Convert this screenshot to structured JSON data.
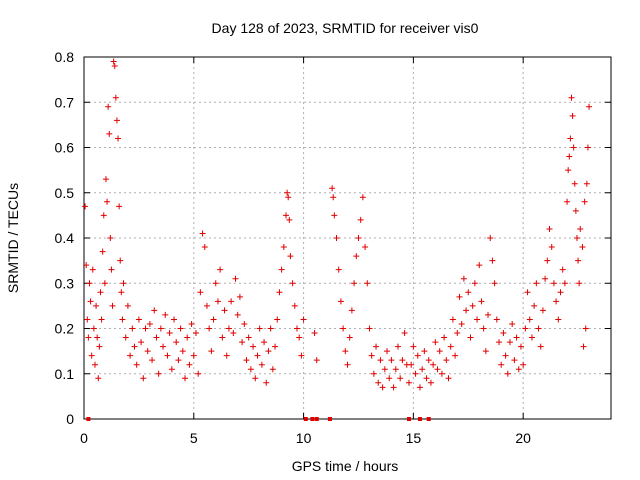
{
  "chart_data": {
    "type": "scatter",
    "title": "Day 128 of 2023, SRMTID for receiver vis0",
    "xlabel": "GPS time / hours",
    "ylabel": "SRMTID / TECUs",
    "xlim": [
      0,
      24
    ],
    "ylim": [
      0,
      0.8
    ],
    "xticks": [
      0,
      5,
      10,
      15,
      20
    ],
    "xtick_labels": [
      "0",
      "5",
      "10",
      "15",
      "20"
    ],
    "yticks": [
      0,
      0.1,
      0.2,
      0.3,
      0.4,
      0.5,
      0.6,
      0.7,
      0.8
    ],
    "ytick_labels": [
      "0",
      "0.1",
      "0.2",
      "0.3",
      "0.4",
      "0.5",
      "0.6",
      "0.7",
      "0.8"
    ],
    "grid": true,
    "marker": "+",
    "color": "#e00000",
    "series": [
      {
        "name": "vis0",
        "points": [
          [
            0.05,
            0.47
          ],
          [
            0.1,
            0.34
          ],
          [
            0.15,
            0.22
          ],
          [
            0.2,
            0.18
          ],
          [
            0.25,
            0.3
          ],
          [
            0.3,
            0.26
          ],
          [
            0.35,
            0.14
          ],
          [
            0.4,
            0.33
          ],
          [
            0.45,
            0.2
          ],
          [
            0.5,
            0.12
          ],
          [
            0.55,
            0.25
          ],
          [
            0.6,
            0.18
          ],
          [
            0.65,
            0.09
          ],
          [
            0.7,
            0.16
          ],
          [
            0.75,
            0.28
          ],
          [
            0.8,
            0.22
          ],
          [
            0.85,
            0.37
          ],
          [
            0.9,
            0.45
          ],
          [
            0.95,
            0.3
          ],
          [
            1.0,
            0.53
          ],
          [
            1.05,
            0.48
          ],
          [
            1.1,
            0.69
          ],
          [
            1.15,
            0.63
          ],
          [
            1.2,
            0.4
          ],
          [
            1.25,
            0.33
          ],
          [
            1.3,
            0.25
          ],
          [
            1.35,
            0.79
          ],
          [
            1.4,
            0.78
          ],
          [
            1.45,
            0.71
          ],
          [
            1.5,
            0.66
          ],
          [
            1.55,
            0.62
          ],
          [
            1.6,
            0.47
          ],
          [
            1.65,
            0.35
          ],
          [
            1.7,
            0.28
          ],
          [
            1.75,
            0.22
          ],
          [
            1.8,
            0.3
          ],
          [
            1.9,
            0.18
          ],
          [
            2.0,
            0.25
          ],
          [
            2.1,
            0.14
          ],
          [
            2.2,
            0.2
          ],
          [
            2.3,
            0.16
          ],
          [
            2.4,
            0.12
          ],
          [
            2.5,
            0.22
          ],
          [
            2.6,
            0.17
          ],
          [
            2.7,
            0.09
          ],
          [
            2.8,
            0.2
          ],
          [
            2.9,
            0.15
          ],
          [
            3.0,
            0.21
          ],
          [
            3.1,
            0.13
          ],
          [
            3.2,
            0.24
          ],
          [
            3.3,
            0.18
          ],
          [
            3.4,
            0.1
          ],
          [
            3.5,
            0.2
          ],
          [
            3.6,
            0.16
          ],
          [
            3.7,
            0.23
          ],
          [
            3.8,
            0.14
          ],
          [
            3.9,
            0.19
          ],
          [
            4.0,
            0.11
          ],
          [
            4.1,
            0.22
          ],
          [
            4.2,
            0.17
          ],
          [
            4.3,
            0.13
          ],
          [
            4.4,
            0.2
          ],
          [
            4.5,
            0.15
          ],
          [
            4.6,
            0.09
          ],
          [
            4.7,
            0.18
          ],
          [
            4.8,
            0.12
          ],
          [
            4.9,
            0.21
          ],
          [
            5.0,
            0.14
          ],
          [
            5.1,
            0.19
          ],
          [
            5.2,
            0.1
          ],
          [
            5.3,
            0.28
          ],
          [
            5.4,
            0.41
          ],
          [
            5.5,
            0.38
          ],
          [
            5.6,
            0.25
          ],
          [
            5.7,
            0.2
          ],
          [
            5.8,
            0.15
          ],
          [
            5.9,
            0.22
          ],
          [
            6.0,
            0.3
          ],
          [
            6.1,
            0.26
          ],
          [
            6.2,
            0.33
          ],
          [
            6.3,
            0.18
          ],
          [
            6.4,
            0.24
          ],
          [
            6.5,
            0.14
          ],
          [
            6.6,
            0.2
          ],
          [
            6.7,
            0.26
          ],
          [
            6.8,
            0.19
          ],
          [
            6.9,
            0.31
          ],
          [
            7.0,
            0.23
          ],
          [
            7.1,
            0.27
          ],
          [
            7.2,
            0.17
          ],
          [
            7.3,
            0.21
          ],
          [
            7.4,
            0.13
          ],
          [
            7.5,
            0.18
          ],
          [
            7.6,
            0.11
          ],
          [
            7.7,
            0.16
          ],
          [
            7.8,
            0.09
          ],
          [
            7.9,
            0.14
          ],
          [
            8.0,
            0.2
          ],
          [
            8.1,
            0.12
          ],
          [
            8.2,
            0.17
          ],
          [
            8.3,
            0.08
          ],
          [
            8.4,
            0.15
          ],
          [
            8.5,
            0.2
          ],
          [
            8.6,
            0.11
          ],
          [
            8.7,
            0.16
          ],
          [
            8.8,
            0.22
          ],
          [
            8.9,
            0.28
          ],
          [
            9.0,
            0.33
          ],
          [
            9.1,
            0.38
          ],
          [
            9.2,
            0.45
          ],
          [
            9.25,
            0.5
          ],
          [
            9.3,
            0.49
          ],
          [
            9.35,
            0.44
          ],
          [
            9.4,
            0.36
          ],
          [
            9.5,
            0.3
          ],
          [
            9.6,
            0.25
          ],
          [
            9.7,
            0.2
          ],
          [
            9.8,
            0.18
          ],
          [
            9.9,
            0.14
          ],
          [
            10.0,
            0.22
          ],
          [
            10.5,
            0.19
          ],
          [
            10.6,
            0.13
          ],
          [
            11.3,
            0.51
          ],
          [
            11.35,
            0.49
          ],
          [
            11.4,
            0.45
          ],
          [
            11.5,
            0.4
          ],
          [
            11.6,
            0.33
          ],
          [
            11.7,
            0.26
          ],
          [
            11.8,
            0.2
          ],
          [
            11.9,
            0.15
          ],
          [
            12.0,
            0.12
          ],
          [
            12.1,
            0.18
          ],
          [
            12.2,
            0.24
          ],
          [
            12.3,
            0.3
          ],
          [
            12.4,
            0.36
          ],
          [
            12.5,
            0.4
          ],
          [
            12.6,
            0.44
          ],
          [
            12.7,
            0.49
          ],
          [
            12.8,
            0.38
          ],
          [
            12.9,
            0.3
          ],
          [
            13.0,
            0.2
          ],
          [
            13.1,
            0.14
          ],
          [
            13.2,
            0.1
          ],
          [
            13.3,
            0.16
          ],
          [
            13.4,
            0.08
          ],
          [
            13.5,
            0.13
          ],
          [
            13.6,
            0.07
          ],
          [
            13.7,
            0.11
          ],
          [
            13.8,
            0.15
          ],
          [
            13.9,
            0.09
          ],
          [
            14.0,
            0.13
          ],
          [
            14.1,
            0.07
          ],
          [
            14.2,
            0.11
          ],
          [
            14.3,
            0.16
          ],
          [
            14.4,
            0.09
          ],
          [
            14.5,
            0.13
          ],
          [
            14.6,
            0.19
          ],
          [
            14.7,
            0.12
          ],
          [
            14.8,
            0.08
          ],
          [
            14.9,
            0.12
          ],
          [
            15.0,
            0.16
          ],
          [
            15.1,
            0.1
          ],
          [
            15.2,
            0.14
          ],
          [
            15.3,
            0.07
          ],
          [
            15.4,
            0.11
          ],
          [
            15.5,
            0.15
          ],
          [
            15.6,
            0.09
          ],
          [
            15.7,
            0.13
          ],
          [
            15.8,
            0.08
          ],
          [
            15.9,
            0.12
          ],
          [
            16.0,
            0.17
          ],
          [
            16.1,
            0.11
          ],
          [
            16.2,
            0.15
          ],
          [
            16.3,
            0.1
          ],
          [
            16.4,
            0.18
          ],
          [
            16.5,
            0.13
          ],
          [
            16.6,
            0.09
          ],
          [
            16.7,
            0.16
          ],
          [
            16.8,
            0.22
          ],
          [
            16.9,
            0.14
          ],
          [
            17.0,
            0.19
          ],
          [
            17.1,
            0.27
          ],
          [
            17.2,
            0.21
          ],
          [
            17.3,
            0.31
          ],
          [
            17.4,
            0.24
          ],
          [
            17.5,
            0.28
          ],
          [
            17.6,
            0.18
          ],
          [
            17.7,
            0.25
          ],
          [
            17.8,
            0.3
          ],
          [
            17.9,
            0.22
          ],
          [
            18.0,
            0.34
          ],
          [
            18.1,
            0.26
          ],
          [
            18.2,
            0.2
          ],
          [
            18.3,
            0.15
          ],
          [
            18.4,
            0.23
          ],
          [
            18.5,
            0.4
          ],
          [
            18.6,
            0.35
          ],
          [
            18.7,
            0.3
          ],
          [
            18.8,
            0.22
          ],
          [
            18.9,
            0.17
          ],
          [
            19.0,
            0.12
          ],
          [
            19.1,
            0.19
          ],
          [
            19.2,
            0.14
          ],
          [
            19.3,
            0.1
          ],
          [
            19.4,
            0.17
          ],
          [
            19.5,
            0.21
          ],
          [
            19.6,
            0.13
          ],
          [
            19.7,
            0.18
          ],
          [
            19.8,
            0.11
          ],
          [
            19.9,
            0.16
          ],
          [
            20.0,
            0.12
          ],
          [
            20.1,
            0.2
          ],
          [
            20.2,
            0.28
          ],
          [
            20.3,
            0.22
          ],
          [
            20.4,
            0.18
          ],
          [
            20.5,
            0.25
          ],
          [
            20.6,
            0.3
          ],
          [
            20.7,
            0.2
          ],
          [
            20.8,
            0.16
          ],
          [
            20.9,
            0.24
          ],
          [
            21.0,
            0.31
          ],
          [
            21.1,
            0.35
          ],
          [
            21.2,
            0.42
          ],
          [
            21.3,
            0.38
          ],
          [
            21.4,
            0.3
          ],
          [
            21.5,
            0.26
          ],
          [
            21.6,
            0.22
          ],
          [
            21.7,
            0.28
          ],
          [
            21.8,
            0.33
          ],
          [
            21.9,
            0.3
          ],
          [
            22.0,
            0.48
          ],
          [
            22.05,
            0.55
          ],
          [
            22.1,
            0.58
          ],
          [
            22.15,
            0.62
          ],
          [
            22.2,
            0.71
          ],
          [
            22.25,
            0.67
          ],
          [
            22.3,
            0.6
          ],
          [
            22.35,
            0.52
          ],
          [
            22.4,
            0.46
          ],
          [
            22.45,
            0.4
          ],
          [
            22.5,
            0.35
          ],
          [
            22.55,
            0.3
          ],
          [
            22.6,
            0.42
          ],
          [
            22.7,
            0.38
          ],
          [
            22.8,
            0.48
          ],
          [
            22.9,
            0.52
          ],
          [
            22.95,
            0.6
          ],
          [
            23.0,
            0.69
          ],
          [
            22.85,
            0.2
          ],
          [
            22.75,
            0.16
          ]
        ]
      }
    ],
    "baseline_points": [
      0.2,
      10.1,
      10.4,
      10.6,
      11.2,
      14.8,
      15.3,
      15.7
    ]
  }
}
